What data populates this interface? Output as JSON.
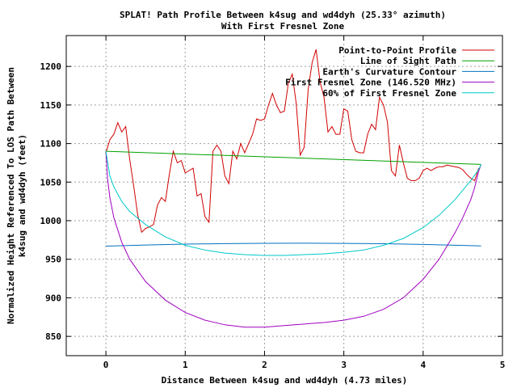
{
  "chart_data": {
    "type": "line",
    "title": "SPLAT! Path Profile Between k4sug and wd4dyh (25.33° azimuth)",
    "subtitle": "With First Fresnel Zone",
    "xlabel": "Distance Between k4sug and wd4dyh (4.73 miles)",
    "ylabel_line1": "Normalized Height Referenced To LOS Path Between",
    "ylabel_line2": "k4sug and wd4dyh (feet)",
    "xlim": [
      -0.5,
      5
    ],
    "ylim": [
      825,
      1240
    ],
    "xticks": [
      0,
      1,
      2,
      3,
      4,
      5
    ],
    "yticks": [
      850,
      900,
      950,
      1000,
      1050,
      1100,
      1150,
      1200
    ],
    "grid": true,
    "legend_position": "top-right",
    "series": [
      {
        "name": "Point-to-Point Profile",
        "color": "#d00000",
        "x": [
          0.0,
          0.05,
          0.1,
          0.15,
          0.2,
          0.25,
          0.3,
          0.35,
          0.4,
          0.45,
          0.5,
          0.55,
          0.6,
          0.65,
          0.7,
          0.75,
          0.8,
          0.85,
          0.9,
          0.95,
          1.0,
          1.05,
          1.1,
          1.15,
          1.2,
          1.25,
          1.3,
          1.35,
          1.4,
          1.45,
          1.5,
          1.55,
          1.6,
          1.65,
          1.7,
          1.75,
          1.8,
          1.85,
          1.9,
          1.95,
          2.0,
          2.05,
          2.1,
          2.15,
          2.2,
          2.25,
          2.3,
          2.35,
          2.4,
          2.45,
          2.5,
          2.55,
          2.6,
          2.65,
          2.7,
          2.75,
          2.8,
          2.85,
          2.9,
          2.95,
          3.0,
          3.05,
          3.1,
          3.15,
          3.2,
          3.25,
          3.3,
          3.35,
          3.4,
          3.45,
          3.5,
          3.55,
          3.6,
          3.65,
          3.7,
          3.75,
          3.8,
          3.85,
          3.9,
          3.95,
          4.0,
          4.05,
          4.1,
          4.15,
          4.2,
          4.25,
          4.3,
          4.35,
          4.4,
          4.45,
          4.5,
          4.55,
          4.6,
          4.65,
          4.7
        ],
        "y": [
          1088,
          1105,
          1112,
          1127,
          1115,
          1122,
          1080,
          1045,
          1008,
          985,
          990,
          992,
          995,
          1020,
          1030,
          1025,
          1060,
          1090,
          1075,
          1078,
          1062,
          1065,
          1068,
          1032,
          1035,
          1005,
          998,
          1090,
          1098,
          1090,
          1058,
          1048,
          1090,
          1080,
          1100,
          1088,
          1100,
          1112,
          1132,
          1130,
          1132,
          1150,
          1165,
          1150,
          1140,
          1142,
          1178,
          1190,
          1152,
          1085,
          1095,
          1170,
          1205,
          1222,
          1180,
          1160,
          1115,
          1122,
          1112,
          1112,
          1145,
          1142,
          1105,
          1090,
          1088,
          1088,
          1112,
          1125,
          1118,
          1160,
          1150,
          1128,
          1065,
          1058,
          1098,
          1075,
          1055,
          1052,
          1052,
          1055,
          1065,
          1068,
          1065,
          1068,
          1070,
          1070,
          1072,
          1071,
          1070,
          1069,
          1066,
          1060,
          1055,
          1052,
          1068
        ]
      },
      {
        "name": "Line of Sight Path",
        "color": "#00a000",
        "x": [
          0.0,
          4.73
        ],
        "y": [
          1090,
          1073
        ]
      },
      {
        "name": "Earth's Curvature Contour",
        "color": "#0070c0",
        "x": [
          0.0,
          0.5,
          1.0,
          1.5,
          2.0,
          2.5,
          3.0,
          3.5,
          4.0,
          4.5,
          4.73
        ],
        "y": [
          967,
          968.5,
          969.6,
          970.3,
          970.7,
          970.8,
          970.6,
          970.1,
          969.2,
          967.9,
          967.2
        ]
      },
      {
        "name": "First Fresnel Zone (146.520 MHz)",
        "color": "#a000c0",
        "x": [
          0.0,
          0.02,
          0.05,
          0.1,
          0.2,
          0.3,
          0.5,
          0.75,
          1.0,
          1.25,
          1.5,
          1.75,
          2.0,
          2.25,
          2.5,
          2.75,
          3.0,
          3.25,
          3.5,
          3.75,
          4.0,
          4.2,
          4.4,
          4.5,
          4.6,
          4.65,
          4.7,
          4.73
        ],
        "y": [
          1090,
          1055,
          1030,
          1004,
          972,
          950,
          921,
          897,
          881,
          871,
          865,
          862,
          862,
          864,
          866,
          868,
          871,
          876,
          885,
          900,
          924,
          950,
          984,
          1004,
          1027,
          1043,
          1064,
          1073
        ]
      },
      {
        "name": "60% of First Fresnel Zone",
        "color": "#00c8c8",
        "x": [
          0.0,
          0.05,
          0.1,
          0.2,
          0.3,
          0.5,
          0.75,
          1.0,
          1.25,
          1.5,
          1.75,
          2.0,
          2.25,
          2.5,
          2.75,
          3.0,
          3.25,
          3.5,
          3.75,
          4.0,
          4.2,
          4.4,
          4.6,
          4.7,
          4.73
        ],
        "y": [
          1090,
          1058,
          1044,
          1025,
          1012,
          995,
          979,
          968,
          962,
          958,
          956,
          955,
          955,
          956,
          957,
          959,
          962,
          968,
          977,
          991,
          1007,
          1027,
          1052,
          1066,
          1073
        ]
      }
    ]
  }
}
